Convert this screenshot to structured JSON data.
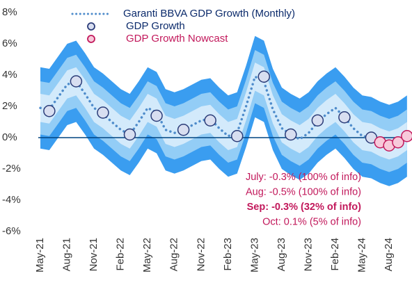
{
  "chart_data": {
    "type": "line",
    "categories": [
      "May-21",
      null,
      null,
      "Aug-21",
      null,
      null,
      "Nov-21",
      null,
      null,
      "Feb-22",
      null,
      null,
      "May-22",
      null,
      null,
      "Aug-22",
      null,
      null,
      "Nov-22",
      null,
      null,
      "Feb-23",
      null,
      null,
      "May-23",
      null,
      null,
      "Aug-23",
      null,
      null,
      "Nov-23",
      null,
      null,
      "Feb-24",
      null,
      null,
      "May-24",
      null,
      null,
      "Aug-24",
      null,
      null
    ],
    "ylim": [
      -6,
      8
    ],
    "yticks": [
      {
        "value": -6,
        "label": "-6%"
      },
      {
        "value": -4,
        "label": "-4%"
      },
      {
        "value": -2,
        "label": "-2%"
      },
      {
        "value": 0,
        "label": "0%"
      },
      {
        "value": 2,
        "label": "2%"
      },
      {
        "value": 4,
        "label": "4%"
      },
      {
        "value": 6,
        "label": "6%"
      },
      {
        "value": 8,
        "label": "8%"
      }
    ],
    "zero_line_color": "#004481",
    "bands": [
      {
        "color": "#3a9df0",
        "upper": [
          4.5,
          4.4,
          5.2,
          6.0,
          6.2,
          5.4,
          4.5,
          4.1,
          3.6,
          3.1,
          2.8,
          3.6,
          4.5,
          4.2,
          3.1,
          2.9,
          3.1,
          3.4,
          3.7,
          3.8,
          3.2,
          2.7,
          2.9,
          4.6,
          6.5,
          6.2,
          4.4,
          3.2,
          2.8,
          2.5,
          2.9,
          3.6,
          4.1,
          4.5,
          3.9,
          3.2,
          2.7,
          2.6,
          2.3,
          2.1,
          2.3,
          2.7
        ],
        "lower": [
          -0.7,
          -0.8,
          0.0,
          0.8,
          1.0,
          0.2,
          -0.7,
          -1.1,
          -1.6,
          -2.1,
          -2.4,
          -1.6,
          -0.7,
          -1.0,
          -2.1,
          -2.3,
          -2.1,
          -1.8,
          -1.5,
          -1.4,
          -2.0,
          -2.5,
          -2.3,
          -0.6,
          1.3,
          1.0,
          -0.8,
          -2.0,
          -2.4,
          -2.7,
          -2.3,
          -1.6,
          -1.1,
          -0.7,
          -1.3,
          -2.0,
          -2.5,
          -2.6,
          -2.9,
          -3.1,
          -2.9,
          -2.5
        ]
      },
      {
        "color": "#93cdf6",
        "upper": [
          3.6,
          3.5,
          4.3,
          5.1,
          5.3,
          4.5,
          3.6,
          3.2,
          2.7,
          2.2,
          1.9,
          2.7,
          3.6,
          3.3,
          2.2,
          2.0,
          2.2,
          2.5,
          2.8,
          2.9,
          2.3,
          1.8,
          2.0,
          3.7,
          5.6,
          5.3,
          3.5,
          2.3,
          1.9,
          1.6,
          2.0,
          2.7,
          3.2,
          3.6,
          3.0,
          2.3,
          1.8,
          1.7,
          1.4,
          1.2,
          1.4,
          1.8
        ],
        "lower": [
          0.2,
          0.1,
          0.9,
          1.7,
          1.9,
          1.1,
          0.2,
          -0.2,
          -0.7,
          -1.2,
          -1.5,
          -0.7,
          0.2,
          -0.1,
          -1.2,
          -1.4,
          -1.2,
          -0.9,
          -0.6,
          -0.5,
          -1.1,
          -1.6,
          -1.4,
          0.3,
          2.2,
          1.9,
          0.1,
          -1.1,
          -1.5,
          -1.8,
          -1.4,
          -0.7,
          -0.2,
          0.2,
          -0.4,
          -1.1,
          -1.6,
          -1.7,
          -2.0,
          -2.2,
          -2.0,
          -1.6
        ]
      },
      {
        "color": "#d3eafb",
        "upper": [
          2.8,
          2.7,
          3.5,
          4.3,
          4.5,
          3.7,
          2.8,
          2.4,
          1.9,
          1.4,
          1.1,
          1.9,
          2.8,
          2.5,
          1.4,
          1.2,
          1.4,
          1.7,
          2.0,
          2.1,
          1.5,
          1.0,
          1.2,
          2.9,
          4.8,
          4.5,
          2.7,
          1.5,
          1.1,
          0.8,
          1.2,
          1.9,
          2.4,
          2.8,
          2.2,
          1.5,
          1.0,
          0.9,
          0.6,
          0.4,
          0.6,
          1.0
        ],
        "lower": [
          1.0,
          0.9,
          1.7,
          2.5,
          2.7,
          1.9,
          1.0,
          0.6,
          0.1,
          -0.4,
          -0.7,
          0.1,
          1.0,
          0.7,
          -0.4,
          -0.6,
          -0.4,
          -0.1,
          0.2,
          0.3,
          -0.3,
          -0.8,
          -0.6,
          1.1,
          3.0,
          2.7,
          0.9,
          -0.3,
          -0.7,
          -1.0,
          -0.6,
          0.1,
          0.6,
          1.0,
          0.4,
          -0.3,
          -0.8,
          -0.9,
          -1.2,
          -1.4,
          -1.2,
          -0.8
        ]
      }
    ],
    "series": [
      {
        "name": "Garanti BBVA GDP Growth (Monthly)",
        "color": "#4f8ccb",
        "style": "dotted",
        "values": [
          1.9,
          1.8,
          2.6,
          3.4,
          3.6,
          2.8,
          1.9,
          1.5,
          1.0,
          0.5,
          0.2,
          1.0,
          1.9,
          1.6,
          0.5,
          0.3,
          0.5,
          0.8,
          1.1,
          1.2,
          0.6,
          0.1,
          0.3,
          2.0,
          3.9,
          3.6,
          1.8,
          0.6,
          0.2,
          -0.1,
          0.3,
          1.0,
          1.5,
          1.9,
          1.3,
          0.6,
          0.1,
          0.0,
          -0.3,
          -0.5,
          -0.3,
          0.1
        ]
      },
      {
        "name": "GDP Growth",
        "color": "#d8def0",
        "stroke": "#2b3c78",
        "style": "markers",
        "values": [
          null,
          1.7,
          null,
          null,
          3.6,
          null,
          null,
          1.6,
          null,
          null,
          0.2,
          null,
          null,
          1.4,
          null,
          null,
          0.5,
          null,
          null,
          1.1,
          null,
          null,
          0.1,
          null,
          null,
          3.9,
          null,
          null,
          0.2,
          null,
          null,
          1.1,
          null,
          null,
          1.3,
          null,
          null,
          0.0,
          null,
          null,
          null,
          null
        ]
      },
      {
        "name": "GDP Growth Nowcast",
        "color": "#f7c9da",
        "stroke": "#c2185b",
        "style": "markers",
        "values": [
          null,
          null,
          null,
          null,
          null,
          null,
          null,
          null,
          null,
          null,
          null,
          null,
          null,
          null,
          null,
          null,
          null,
          null,
          null,
          null,
          null,
          null,
          null,
          null,
          null,
          null,
          null,
          null,
          null,
          null,
          null,
          null,
          null,
          null,
          null,
          null,
          null,
          null,
          -0.3,
          -0.5,
          -0.3,
          0.1
        ]
      }
    ],
    "annotations": [
      {
        "text": "July: -0.3% (100% of info)",
        "bold": false
      },
      {
        "text": "Aug: -0.5% (100% of info)",
        "bold": false
      },
      {
        "text": "Sep: -0.3% (32% of info)",
        "bold": true
      },
      {
        "text": "Oct: 0.1% (5% of info)",
        "bold": false
      }
    ]
  }
}
